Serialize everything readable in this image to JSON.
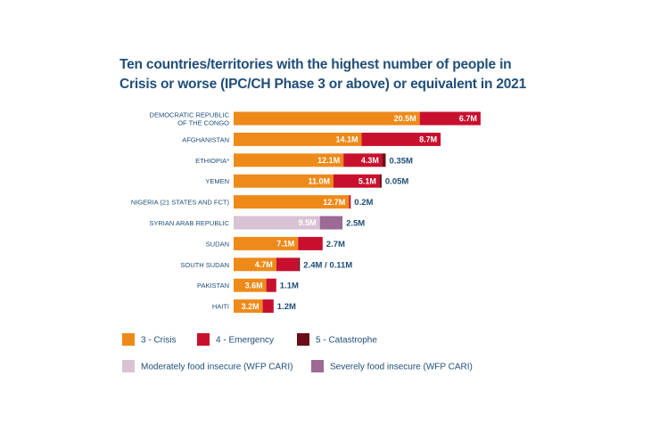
{
  "chart_data": {
    "type": "bar",
    "orientation": "horizontal",
    "stacked": true,
    "title_lines": [
      "Ten countries/territories with the highest number of people in",
      "Crisis or worse (IPC/CH Phase 3 or above) or equivalent in 2021"
    ],
    "unit": "million people",
    "xlim": [
      0,
      28
    ],
    "colors": {
      "crisis": "#ee8a1a",
      "emergency": "#c8102e",
      "catastrophe": "#6a0f1a",
      "moderate": "#d8c2d4",
      "severe": "#9c6a94",
      "label_dark": "#1f4e79"
    },
    "legend": [
      {
        "key": "crisis",
        "label": "3 - Crisis"
      },
      {
        "key": "emergency",
        "label": "4 - Emergency"
      },
      {
        "key": "catastrophe",
        "label": "5 - Catastrophe"
      },
      {
        "key": "moderate",
        "label": "Moderately food insecure (WFP CARI)"
      },
      {
        "key": "severe",
        "label": "Severely food insecure (WFP CARI)"
      }
    ],
    "categories": [
      {
        "label_lines": [
          "DEMOCRATIC REPUBLIC",
          "OF THE CONGO"
        ],
        "segments": [
          {
            "key": "crisis",
            "value": 20.5,
            "label": "20.5M"
          },
          {
            "key": "emergency",
            "value": 6.7,
            "label": "6.7M"
          }
        ],
        "outside_label": ""
      },
      {
        "label_lines": [
          "AFGHANISTAN"
        ],
        "segments": [
          {
            "key": "crisis",
            "value": 14.1,
            "label": "14.1M"
          },
          {
            "key": "emergency",
            "value": 8.7,
            "label": "8.7M"
          }
        ],
        "outside_label": ""
      },
      {
        "label_lines": [
          "ETHIOPIA*"
        ],
        "segments": [
          {
            "key": "crisis",
            "value": 12.1,
            "label": "12.1M"
          },
          {
            "key": "emergency",
            "value": 4.3,
            "label": "4.3M"
          },
          {
            "key": "catastrophe",
            "value": 0.35,
            "label": ""
          }
        ],
        "outside_label": "0.35M"
      },
      {
        "label_lines": [
          "YEMEN"
        ],
        "segments": [
          {
            "key": "crisis",
            "value": 11.0,
            "label": "11.0M"
          },
          {
            "key": "emergency",
            "value": 5.1,
            "label": "5.1M"
          },
          {
            "key": "catastrophe",
            "value": 0.05,
            "label": ""
          }
        ],
        "outside_label": "0.05M"
      },
      {
        "label_lines": [
          "NIGERIA (21 STATES AND FCT)"
        ],
        "segments": [
          {
            "key": "crisis",
            "value": 12.7,
            "label": "12.7M"
          },
          {
            "key": "emergency",
            "value": 0.2,
            "label": ""
          }
        ],
        "outside_label": "0.2M"
      },
      {
        "label_lines": [
          "SYRIAN ARAB REPUBLIC"
        ],
        "segments": [
          {
            "key": "moderate",
            "value": 9.5,
            "label": "9.5M"
          },
          {
            "key": "severe",
            "value": 2.5,
            "label": ""
          }
        ],
        "outside_label": "2.5M"
      },
      {
        "label_lines": [
          "SUDAN"
        ],
        "segments": [
          {
            "key": "crisis",
            "value": 7.1,
            "label": "7.1M"
          },
          {
            "key": "emergency",
            "value": 2.7,
            "label": ""
          }
        ],
        "outside_label": "2.7M"
      },
      {
        "label_lines": [
          "SOUTH SUDAN"
        ],
        "segments": [
          {
            "key": "crisis",
            "value": 4.7,
            "label": "4.7M"
          },
          {
            "key": "emergency",
            "value": 2.4,
            "label": ""
          },
          {
            "key": "catastrophe",
            "value": 0.11,
            "label": ""
          }
        ],
        "outside_label": "2.4M / 0.11M"
      },
      {
        "label_lines": [
          "PAKISTAN"
        ],
        "segments": [
          {
            "key": "crisis",
            "value": 3.6,
            "label": "3.6M"
          },
          {
            "key": "emergency",
            "value": 1.1,
            "label": ""
          }
        ],
        "outside_label": "1.1M"
      },
      {
        "label_lines": [
          "HAITI"
        ],
        "segments": [
          {
            "key": "crisis",
            "value": 3.2,
            "label": "3.2M"
          },
          {
            "key": "emergency",
            "value": 1.2,
            "label": ""
          }
        ],
        "outside_label": "1.2M"
      }
    ]
  }
}
